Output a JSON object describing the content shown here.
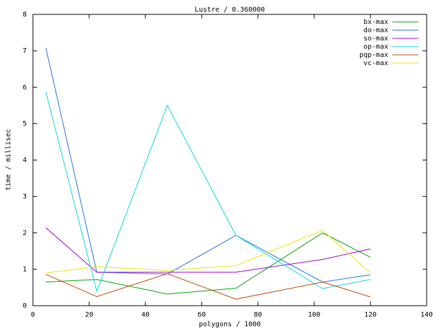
{
  "chart_data": {
    "type": "line",
    "title": "Lustre / 0.360000",
    "x_label": "polygons / 1000",
    "y_label": "time / millisec",
    "x": [
      4.6,
      22.7,
      47.8,
      72.2,
      103,
      120
    ],
    "series": [
      {
        "name": "bx-max",
        "color": "#00a000",
        "values": [
          0.65,
          0.72,
          0.32,
          0.48,
          2.0,
          1.33
        ]
      },
      {
        "name": "do-max",
        "color": "#1f6fe0",
        "values": [
          7.08,
          0.92,
          0.87,
          1.93,
          0.65,
          0.85
        ]
      },
      {
        "name": "so-max",
        "color": "#a000d0",
        "values": [
          2.14,
          0.92,
          0.92,
          0.92,
          1.27,
          1.56
        ]
      },
      {
        "name": "op-max",
        "color": "#00d8e0",
        "values": [
          5.87,
          0.4,
          5.5,
          1.93,
          0.47,
          0.72
        ]
      },
      {
        "name": "pqp-max",
        "color": "#c04000",
        "values": [
          0.86,
          0.25,
          0.88,
          0.18,
          0.65,
          0.24
        ]
      },
      {
        "name": "vc-max",
        "color": "#f0e000",
        "values": [
          0.9,
          1.07,
          0.97,
          1.1,
          2.07,
          0.9
        ]
      }
    ],
    "xlim": [
      0,
      140
    ],
    "xticks": [
      0,
      20,
      40,
      60,
      80,
      100,
      120,
      140
    ],
    "ylim": [
      0,
      8
    ],
    "yticks": [
      0,
      1,
      2,
      3,
      4,
      5,
      6,
      7,
      8
    ],
    "grid": false,
    "legend": "top-right"
  }
}
